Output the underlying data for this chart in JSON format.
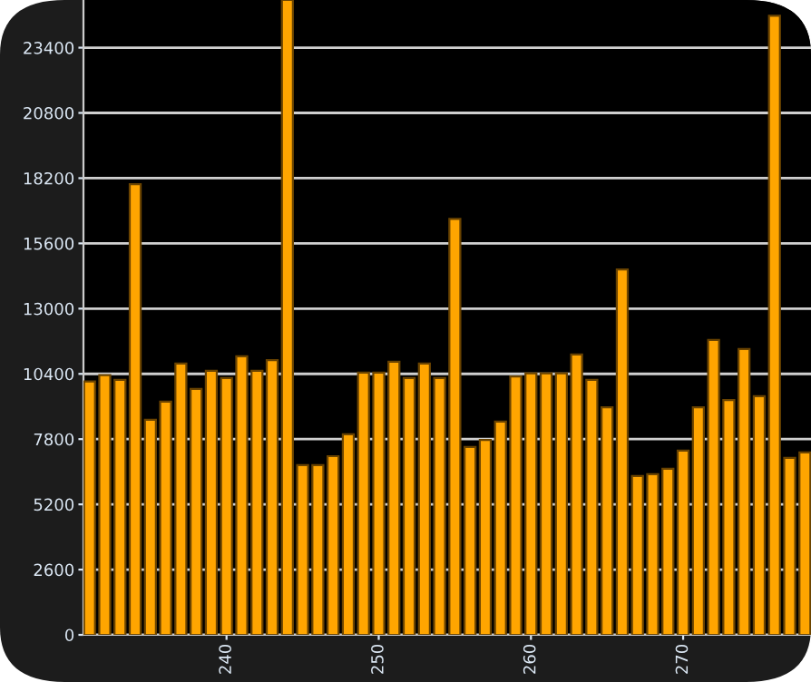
{
  "chart_data": {
    "type": "bar",
    "x": [
      231,
      232,
      233,
      234,
      235,
      236,
      237,
      238,
      239,
      240,
      241,
      242,
      243,
      244,
      245,
      246,
      247,
      248,
      249,
      250,
      251,
      252,
      253,
      254,
      255,
      256,
      257,
      258,
      259,
      260,
      261,
      262,
      263,
      264,
      265,
      266,
      267,
      268,
      269,
      270,
      271,
      272,
      273,
      274,
      275,
      276,
      277,
      278
    ],
    "values": [
      10100,
      10350,
      10160,
      17960,
      8570,
      9290,
      10810,
      9800,
      10520,
      10230,
      11100,
      10520,
      10950,
      25300,
      6760,
      6760,
      7120,
      7990,
      10450,
      10450,
      10880,
      10230,
      10810,
      10230,
      16580,
      7490,
      7770,
      8500,
      10300,
      10420,
      10420,
      10420,
      11170,
      10160,
      9070,
      14560,
      6330,
      6400,
      6620,
      7340,
      9070,
      11750,
      9360,
      11390,
      9510,
      24670,
      7050,
      7270
    ],
    "color": "#ffa500",
    "xlim": [
      230.6,
      278.4
    ],
    "xticks": [
      240,
      250,
      260,
      270
    ],
    "ylim": [
      0,
      25300
    ],
    "yticks": [
      0,
      2600,
      5200,
      7800,
      10400,
      13000,
      15600,
      18200,
      20800,
      23400
    ],
    "grid": "y"
  }
}
